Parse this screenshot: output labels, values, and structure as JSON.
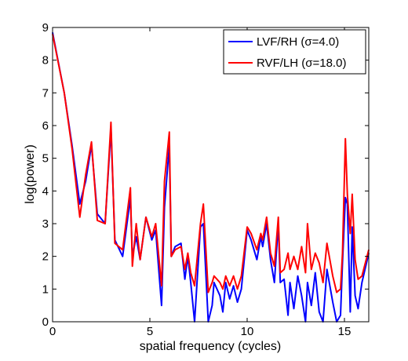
{
  "chart_data": {
    "type": "line",
    "xlabel": "spatial frequency (cycles)",
    "ylabel": "log(power)",
    "xlim": [
      0,
      16.25
    ],
    "ylim": [
      0,
      9
    ],
    "x_ticks": [
      0,
      5,
      10,
      15
    ],
    "y_ticks": [
      0,
      1,
      2,
      3,
      4,
      5,
      6,
      7,
      8,
      9
    ],
    "grid": false,
    "legend_position": "top-right",
    "series": [
      {
        "name": "LVF/RH (σ=4.0)",
        "color": "#0000ff",
        "x": [
          0,
          0.6,
          1.0,
          1.4,
          1.7,
          2.0,
          2.3,
          2.7,
          3.0,
          3.2,
          3.6,
          4.0,
          4.1,
          4.3,
          4.5,
          4.8,
          5.1,
          5.3,
          5.6,
          5.75,
          6.0,
          6.1,
          6.3,
          6.6,
          6.8,
          6.95,
          7.1,
          7.3,
          7.6,
          7.75,
          8.0,
          8.2,
          8.3,
          8.6,
          8.75,
          8.9,
          9.1,
          9.3,
          9.5,
          9.7,
          10.0,
          10.2,
          10.5,
          10.7,
          10.8,
          11.0,
          11.2,
          11.4,
          11.6,
          11.7,
          11.9,
          12.1,
          12.2,
          12.4,
          12.6,
          12.8,
          13.0,
          13.1,
          13.3,
          13.5,
          13.7,
          13.9,
          14.1,
          14.4,
          14.6,
          14.8,
          14.9,
          15.05,
          15.15,
          15.3,
          15.4,
          15.55,
          15.7,
          15.9,
          16.25
        ],
        "values": [
          8.85,
          7.0,
          5.4,
          3.6,
          4.3,
          5.4,
          3.3,
          3.0,
          5.9,
          2.5,
          2.0,
          3.8,
          2.0,
          2.6,
          1.9,
          3.2,
          2.5,
          2.8,
          0.5,
          3.5,
          5.4,
          2.0,
          2.3,
          2.4,
          1.3,
          2.0,
          1.2,
          0.0,
          2.9,
          3.0,
          0.0,
          0.5,
          1.2,
          0.8,
          0.3,
          1.2,
          0.7,
          1.1,
          0.6,
          1.0,
          2.8,
          2.5,
          1.9,
          2.6,
          2.3,
          3.0,
          1.9,
          1.2,
          3.0,
          1.2,
          1.3,
          0.2,
          1.2,
          0.4,
          1.4,
          0.8,
          0.0,
          1.2,
          0.5,
          1.5,
          0.3,
          0.0,
          1.6,
          0.6,
          0.0,
          0.2,
          1.8,
          3.8,
          3.6,
          0.3,
          2.9,
          0.8,
          0.4,
          1.2,
          2.1
        ]
      },
      {
        "name": "RVF/LH (σ=18.0)",
        "color": "#ff0000",
        "x": [
          0,
          0.6,
          1.0,
          1.4,
          1.7,
          2.0,
          2.3,
          2.7,
          3.0,
          3.2,
          3.6,
          4.0,
          4.1,
          4.3,
          4.5,
          4.8,
          5.1,
          5.3,
          5.6,
          5.75,
          6.0,
          6.1,
          6.3,
          6.6,
          6.8,
          6.95,
          7.1,
          7.3,
          7.6,
          7.75,
          8.0,
          8.2,
          8.3,
          8.6,
          8.75,
          8.9,
          9.1,
          9.3,
          9.5,
          9.7,
          10.0,
          10.2,
          10.5,
          10.7,
          10.8,
          11.0,
          11.2,
          11.4,
          11.6,
          11.7,
          11.9,
          12.1,
          12.2,
          12.4,
          12.6,
          12.8,
          13.0,
          13.1,
          13.3,
          13.5,
          13.7,
          13.9,
          14.1,
          14.4,
          14.6,
          14.8,
          14.9,
          15.05,
          15.15,
          15.3,
          15.4,
          15.55,
          15.7,
          15.9,
          16.25
        ],
        "values": [
          8.8,
          7.0,
          5.3,
          3.2,
          4.5,
          5.5,
          3.1,
          3.0,
          6.1,
          2.4,
          2.2,
          4.1,
          1.7,
          3.0,
          1.9,
          3.2,
          2.6,
          3.0,
          1.1,
          4.3,
          5.8,
          2.0,
          2.2,
          2.3,
          1.6,
          2.1,
          1.5,
          1.1,
          3.0,
          3.6,
          0.9,
          1.2,
          1.4,
          1.2,
          1.0,
          1.4,
          1.1,
          1.4,
          1.0,
          1.4,
          2.9,
          2.7,
          2.2,
          2.7,
          2.5,
          3.2,
          2.1,
          1.7,
          3.2,
          1.5,
          1.6,
          2.1,
          1.6,
          2.0,
          1.6,
          2.3,
          1.5,
          3.0,
          1.6,
          2.1,
          1.8,
          1.2,
          2.4,
          1.4,
          0.9,
          1.0,
          2.1,
          5.6,
          3.9,
          2.7,
          3.9,
          1.9,
          1.3,
          1.4,
          2.2
        ]
      }
    ]
  }
}
